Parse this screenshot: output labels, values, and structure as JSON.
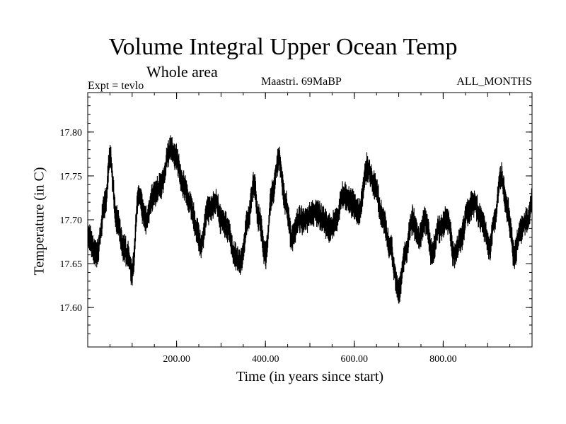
{
  "chart_data": {
    "type": "line",
    "title": "Volume Integral Upper Ocean Temp",
    "subtitle": "Whole area",
    "experiment": "Expt = tevlo",
    "model": "Maastri.  69MaBP",
    "period": "ALL_MONTHS",
    "xlabel": "Time (in years since start)",
    "ylabel": "Temperature (in C)",
    "xlim": [
      0,
      1000
    ],
    "ylim": [
      17.555,
      17.845
    ],
    "x_ticks": [
      200,
      400,
      600,
      800
    ],
    "x_tick_labels": [
      "200.00",
      "400.00",
      "600.00",
      "800.00"
    ],
    "y_ticks": [
      17.6,
      17.65,
      17.7,
      17.75,
      17.8
    ],
    "y_tick_labels": [
      "17.60",
      "17.65",
      "17.70",
      "17.75",
      "17.80"
    ],
    "series": [
      {
        "name": "Volume Integral Upper Ocean Temp",
        "x": [
          0,
          20,
          40,
          50,
          65,
          80,
          90,
          100,
          115,
          130,
          150,
          165,
          185,
          200,
          215,
          230,
          245,
          255,
          270,
          290,
          300,
          315,
          330,
          345,
          360,
          375,
          385,
          400,
          415,
          430,
          445,
          460,
          475,
          490,
          510,
          530,
          545,
          560,
          575,
          590,
          610,
          630,
          645,
          665,
          680,
          700,
          715,
          730,
          745,
          760,
          775,
          790,
          810,
          825,
          840,
          855,
          870,
          885,
          905,
          915,
          930,
          945,
          960,
          975,
          990,
          1000
        ],
        "values": [
          17.68,
          17.66,
          17.72,
          17.77,
          17.7,
          17.67,
          17.66,
          17.64,
          17.73,
          17.7,
          17.73,
          17.74,
          17.78,
          17.77,
          17.74,
          17.72,
          17.69,
          17.67,
          17.71,
          17.72,
          17.7,
          17.69,
          17.66,
          17.65,
          17.7,
          17.74,
          17.7,
          17.66,
          17.73,
          17.77,
          17.72,
          17.68,
          17.7,
          17.7,
          17.71,
          17.7,
          17.69,
          17.7,
          17.73,
          17.72,
          17.71,
          17.76,
          17.74,
          17.7,
          17.67,
          17.62,
          17.66,
          17.7,
          17.68,
          17.7,
          17.66,
          17.69,
          17.7,
          17.66,
          17.68,
          17.71,
          17.72,
          17.7,
          17.67,
          17.7,
          17.75,
          17.71,
          17.66,
          17.69,
          17.7,
          17.72
        ],
        "band_half_width": 0.016
      }
    ]
  }
}
